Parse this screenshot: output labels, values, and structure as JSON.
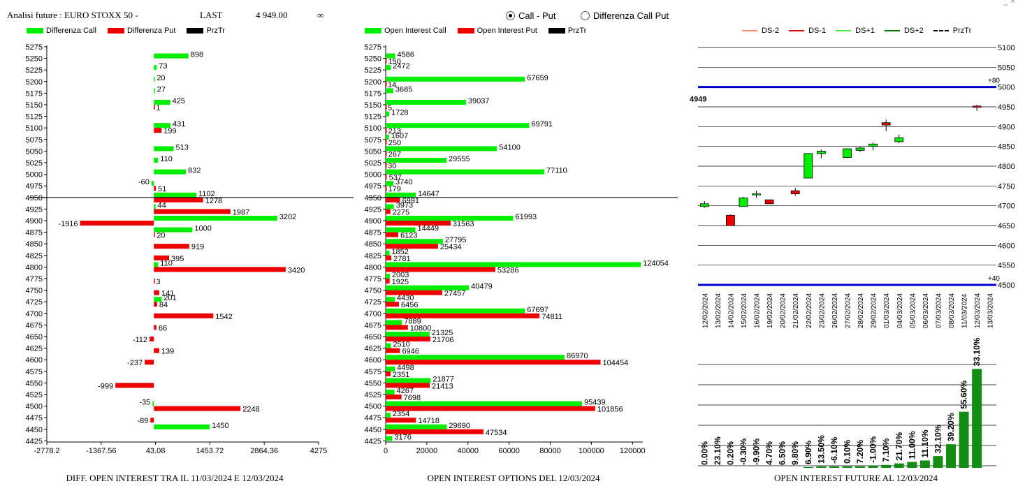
{
  "header": {
    "title": "Analisi future : EURO STOXX 50 -",
    "last_label": "LAST",
    "last_value": "4 949.00",
    "infinity": "∞"
  },
  "mode": {
    "options": [
      "Call - Put",
      "Differenza Call Put"
    ],
    "selected": 0
  },
  "colors": {
    "green": "#00ee00",
    "red": "#ee0000",
    "black": "#000000",
    "dkgreen": "#138d13",
    "blue": "#0000cc",
    "ds2": "#ff8c69",
    "ds1": "#dd0000",
    "ds1p": "#44ee44",
    "ds2p": "#007700"
  },
  "legends": {
    "left": [
      "Differenza Call",
      "Differenza Put",
      "PrzTr"
    ],
    "mid": [
      "Open Interest Call",
      "Open Interest Put",
      "PrzTr"
    ],
    "right": [
      "DS-2",
      "DS-1",
      "DS+1",
      "DS+2",
      "PrzTr"
    ]
  },
  "footers": {
    "left": "DIFF. OPEN INTEREST TRA IL 11/03/2024 E 12/03/2024",
    "mid": "OPEN INTEREST OPTIONS DEL 12/03/2024",
    "right": "OPEN INTEREST FUTURE AL 12/03/2024"
  },
  "chart_data": [
    {
      "type": "bar",
      "orientation": "horizontal",
      "strikes": [
        "5275",
        "5250",
        "5225",
        "5200",
        "5175",
        "5150",
        "5125",
        "5100",
        "5075",
        "5050",
        "5025",
        "5000",
        "4975",
        "4950",
        "4925",
        "4900",
        "4875",
        "4850",
        "4825",
        "4800",
        "4775",
        "4750",
        "4725",
        "4700",
        "4675",
        "4650",
        "4625",
        "4600",
        "4575",
        "4550",
        "4525",
        "4500",
        "4475",
        "4450",
        "4425"
      ],
      "series": [
        {
          "name": "Differenza Call",
          "values": [
            null,
            898,
            73,
            20,
            27,
            425,
            null,
            431,
            null,
            513,
            110,
            832,
            -60,
            1102,
            44,
            3202,
            1000,
            null,
            null,
            110,
            null,
            null,
            201,
            null,
            null,
            null,
            null,
            null,
            null,
            null,
            null,
            -35,
            null,
            1450,
            null
          ]
        },
        {
          "name": "Differenza Put",
          "values": [
            null,
            null,
            null,
            null,
            null,
            1,
            null,
            199,
            null,
            null,
            null,
            null,
            51,
            1278,
            1987,
            -1916,
            20,
            919,
            395,
            3420,
            3,
            141,
            84,
            1542,
            66,
            -112,
            139,
            -237,
            null,
            -999,
            null,
            2248,
            -89,
            null,
            null
          ]
        }
      ],
      "x_ticks": [
        "-2778.2",
        "-1367.56",
        "43.08",
        "1453.72",
        "2864.36",
        "4275"
      ],
      "xlim": [
        -2778.2,
        4275
      ],
      "price_line": "4950"
    },
    {
      "type": "bar",
      "orientation": "horizontal",
      "strikes": [
        "5275",
        "5250",
        "5225",
        "5200",
        "5175",
        "5150",
        "5125",
        "5100",
        "5075",
        "5050",
        "5025",
        "5000",
        "4975",
        "4950",
        "4925",
        "4900",
        "4875",
        "4850",
        "4825",
        "4800",
        "4775",
        "4750",
        "4725",
        "4700",
        "4675",
        "4650",
        "4625",
        "4600",
        "4575",
        "4550",
        "4525",
        "4500",
        "4475",
        "4450",
        "4425"
      ],
      "series": [
        {
          "name": "Open Interest Call",
          "values": [
            null,
            4586,
            2472,
            67659,
            3685,
            39037,
            1728,
            69791,
            1607,
            54100,
            29555,
            77110,
            3740,
            14647,
            3973,
            61993,
            14449,
            27795,
            1852,
            124054,
            2003,
            40479,
            4430,
            67697,
            7889,
            21325,
            2510,
            86970,
            4498,
            21877,
            4267,
            95439,
            2354,
            29690,
            3176
          ]
        },
        {
          "name": "Open Interest Put",
          "values": [
            null,
            150,
            null,
            14,
            null,
            5,
            null,
            213,
            250,
            267,
            30,
            537,
            179,
            6991,
            2275,
            31563,
            6123,
            25434,
            2781,
            53286,
            1925,
            27457,
            6456,
            74811,
            10800,
            21706,
            6946,
            104454,
            2351,
            21413,
            7698,
            101856,
            14718,
            47534,
            null
          ]
        }
      ],
      "x_ticks": [
        "0",
        "20000",
        "40000",
        "60000",
        "80000",
        "100000",
        "120000"
      ],
      "xlim": [
        0,
        125000
      ],
      "price_line": "4950"
    },
    {
      "type": "candlestick",
      "dates": [
        "12/02/2024",
        "13/02/2024",
        "14/02/2024",
        "15/02/2024",
        "16/02/2024",
        "19/02/2024",
        "20/02/2024",
        "21/02/2024",
        "22/02/2024",
        "23/02/2024",
        "26/02/2024",
        "27/02/2024",
        "28/02/2024",
        "29/02/2024",
        "01/03/2024",
        "04/03/2024",
        "05/03/2024",
        "06/03/2024",
        "07/03/2024",
        "08/03/2024",
        "11/03/2024",
        "12/03/2024",
        "13/03/2024"
      ],
      "ohlc": [
        [
          4698,
          4712,
          4695,
          4705
        ],
        null,
        [
          4676,
          4678,
          4650,
          4650
        ],
        [
          4698,
          4722,
          4698,
          4720
        ],
        [
          4730,
          4738,
          4720,
          4730
        ],
        [
          4715,
          4715,
          4705,
          4705
        ],
        null,
        [
          4738,
          4745,
          4725,
          4730
        ],
        [
          4770,
          4832,
          4770,
          4832
        ],
        [
          4832,
          4842,
          4820,
          4838
        ],
        null,
        [
          4822,
          4845,
          4820,
          4844
        ],
        [
          4840,
          4849,
          4836,
          4846
        ],
        [
          4850,
          4860,
          4840,
          4856
        ],
        [
          4910,
          4918,
          4888,
          4904
        ],
        [
          4862,
          4880,
          4858,
          4872
        ],
        null,
        null,
        null,
        null,
        null,
        [
          4952,
          4955,
          4940,
          4949
        ],
        null
      ],
      "y_ticks": [
        "5100",
        "5050",
        "5000",
        "4950",
        "4900",
        "4850",
        "4800",
        "4750",
        "4700",
        "4650",
        "4600",
        "4550",
        "4500"
      ],
      "ylim": [
        4500,
        5100
      ],
      "blue_lines": [
        {
          "value": 5000,
          "label": "+80"
        },
        {
          "value": 4500,
          "label": "+40"
        }
      ],
      "price_label": "4949",
      "price_value": 4949
    },
    {
      "type": "bar",
      "categories": [
        "12/02/2024",
        "13/02/2024",
        "14/02/2024",
        "15/02/2024",
        "16/02/2024",
        "19/02/2024",
        "20/02/2024",
        "21/02/2024",
        "22/02/2024",
        "23/02/2024",
        "26/02/2024",
        "27/02/2024",
        "28/02/2024",
        "29/02/2024",
        "01/03/2024",
        "04/03/2024",
        "05/03/2024",
        "06/03/2024",
        "07/03/2024",
        "08/03/2024",
        "11/03/2024",
        "12/03/2024",
        "13/03/2024"
      ],
      "labels": [
        "0.00%",
        "23.10%",
        "0.20%",
        "-0.30%",
        "-9.90%",
        "4.70%",
        "6.50%",
        "9.80%",
        "6.90%",
        "13.50%",
        "-6.10%",
        "0.10%",
        "7.20%",
        "-1.00%",
        "7.10%",
        "21.70%",
        "11.00%",
        "11.10%",
        "32.10%",
        "39.20%",
        "55.60%",
        "33.10%"
      ],
      "values": [
        0,
        0,
        0,
        0,
        0,
        0,
        0,
        0,
        0.5,
        1,
        1,
        1,
        1,
        1.5,
        2,
        3,
        4,
        5,
        8,
        16,
        38,
        67
      ]
    }
  ]
}
